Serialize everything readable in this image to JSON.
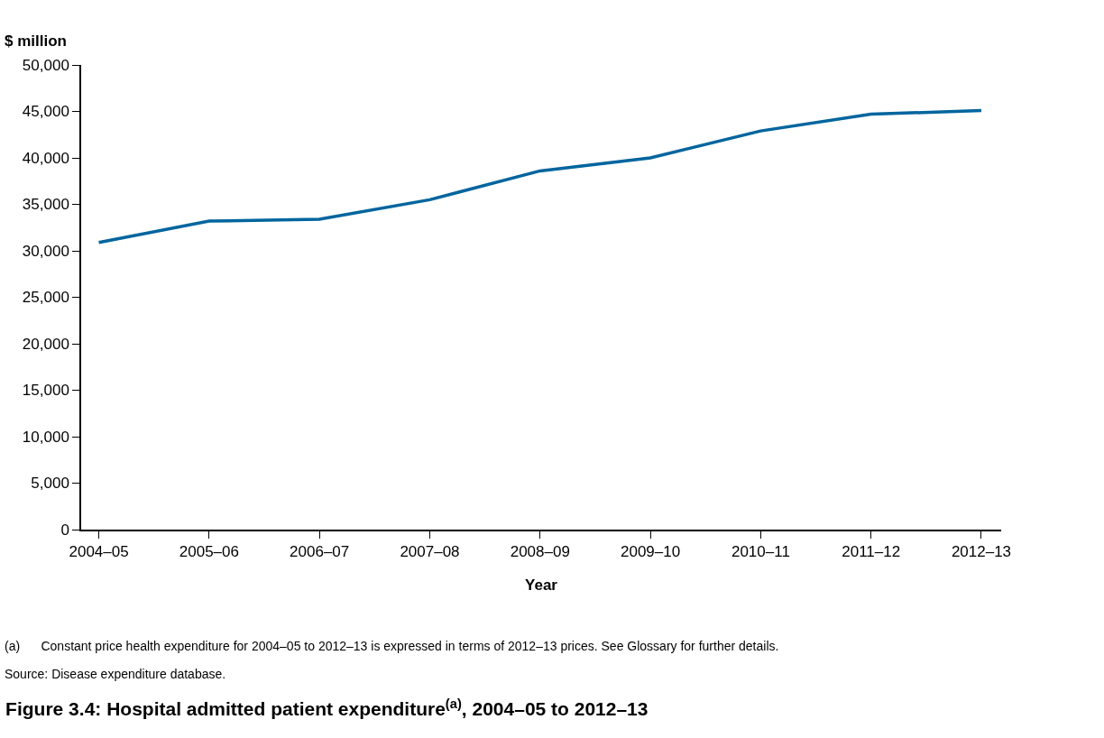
{
  "chart_data": {
    "type": "line",
    "title": "Figure 3.4: Hospital admitted patient expenditure$^{(a)}$, 2004–05 to 2012–13",
    "xlabel": "Year",
    "ylabel": "$ million",
    "categories": [
      "2004–05",
      "2005–06",
      "2006–07",
      "2007–08",
      "2008–09",
      "2009–10",
      "2010–11",
      "2011–12",
      "2012–13"
    ],
    "series": [
      {
        "color": "#00659e",
        "values": [
          30900,
          33200,
          33400,
          35500,
          38600,
          40000,
          42900,
          44700,
          45100
        ]
      }
    ],
    "ylim": [
      0,
      50000
    ],
    "yticks": [
      {
        "value": 0,
        "label": "0"
      },
      {
        "value": 5000,
        "label": "5,000"
      },
      {
        "value": 10000,
        "label": "10,000"
      },
      {
        "value": 15000,
        "label": "15,000"
      },
      {
        "value": 20000,
        "label": "20,000"
      },
      {
        "value": 25000,
        "label": "25,000"
      },
      {
        "value": 30000,
        "label": "30,000"
      },
      {
        "value": 35000,
        "label": "35,000"
      },
      {
        "value": 40000,
        "label": "40,000"
      },
      {
        "value": 45000,
        "label": "45,000"
      },
      {
        "value": 50000,
        "label": "50,000"
      }
    ],
    "marker": "none",
    "line_style": "solid",
    "annotations": [
      "(a)      Constant price health expenditure for 2004–05 to 2012–13 is expressed in terms of 2012–13 prices. See Glossary for further details.",
      "Source: Disease expenditure database."
    ]
  }
}
